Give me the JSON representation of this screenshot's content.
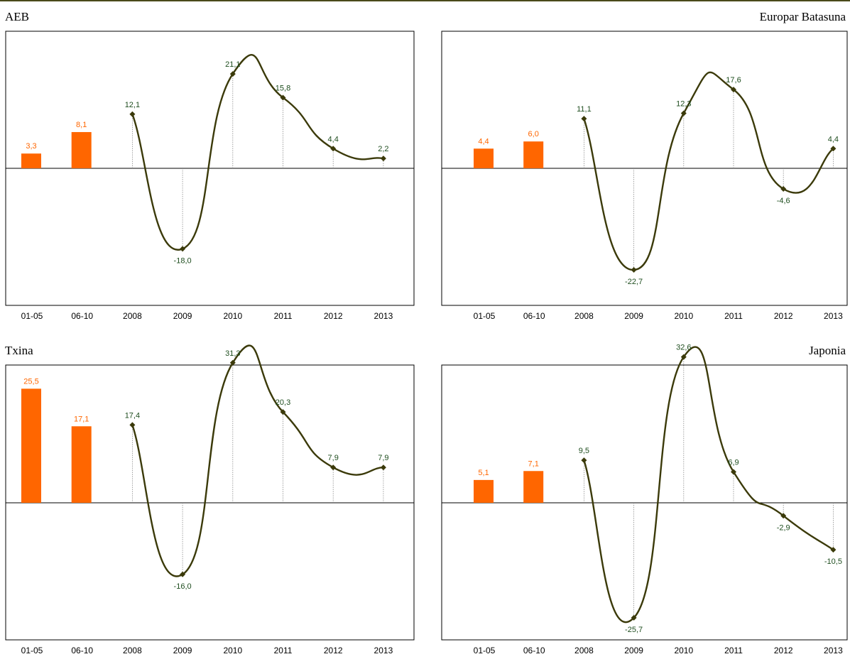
{
  "colors": {
    "bar": "#ff6600",
    "line": "#3b3a0a",
    "line_label": "#1e4d1e",
    "bar_label": "#ff6600",
    "frame": "#000000",
    "drop": "#8c8c8c"
  },
  "categories": [
    "01-05",
    "06-10",
    "2008",
    "2009",
    "2010",
    "2011",
    "2012",
    "2013"
  ],
  "chart_data": [
    {
      "type": "bar+line",
      "title": "AEB",
      "categories": [
        "01-05",
        "06-10",
        "2008",
        "2009",
        "2010",
        "2011",
        "2012",
        "2013"
      ],
      "bars": {
        "categories": [
          "01-05",
          "06-10"
        ],
        "values": [
          3.3,
          8.1
        ],
        "labels": [
          "3,3",
          "8,1"
        ]
      },
      "line": {
        "categories": [
          "2008",
          "2009",
          "2010",
          "2011",
          "2012",
          "2013"
        ],
        "values": [
          12.1,
          -18.0,
          21.1,
          15.8,
          4.4,
          2.2
        ],
        "labels": [
          "12,1",
          "-18,0",
          "21,1",
          "15,8",
          "4,4",
          "2,2"
        ]
      },
      "ylim": [
        -40,
        40
      ]
    },
    {
      "type": "bar+line",
      "title": "Europar Batasuna",
      "categories": [
        "01-05",
        "06-10",
        "2008",
        "2009",
        "2010",
        "2011",
        "2012",
        "2013"
      ],
      "bars": {
        "categories": [
          "01-05",
          "06-10"
        ],
        "values": [
          4.4,
          6.0
        ],
        "labels": [
          "4,4",
          "6,0"
        ]
      },
      "line": {
        "categories": [
          "2008",
          "2009",
          "2010",
          "2011",
          "2012",
          "2013"
        ],
        "values": [
          11.1,
          -22.7,
          12.3,
          17.6,
          -4.6,
          4.4
        ],
        "labels": [
          "11,1",
          "-22,7",
          "12,3",
          "17,6",
          "-4,6",
          "4,4"
        ]
      },
      "ylim": [
        -40,
        40
      ]
    },
    {
      "type": "bar+line",
      "title": "Txina",
      "categories": [
        "01-05",
        "06-10",
        "2008",
        "2009",
        "2010",
        "2011",
        "2012",
        "2013"
      ],
      "bars": {
        "categories": [
          "01-05",
          "06-10"
        ],
        "values": [
          25.5,
          17.1
        ],
        "labels": [
          "25,5",
          "17,1"
        ]
      },
      "line": {
        "categories": [
          "2008",
          "2009",
          "2010",
          "2011",
          "2012",
          "2013"
        ],
        "values": [
          17.4,
          -16.0,
          31.3,
          20.3,
          7.9,
          7.9
        ],
        "labels": [
          "17,4",
          "-16,0",
          "31,3",
          "20,3",
          "7,9",
          "7,9"
        ]
      },
      "ylim": [
        -40,
        40
      ]
    },
    {
      "type": "bar+line",
      "title": "Japonia",
      "categories": [
        "01-05",
        "06-10",
        "2008",
        "2009",
        "2010",
        "2011",
        "2012",
        "2013"
      ],
      "bars": {
        "categories": [
          "01-05",
          "06-10"
        ],
        "values": [
          5.1,
          7.1
        ],
        "labels": [
          "5,1",
          "7,1"
        ]
      },
      "line": {
        "categories": [
          "2008",
          "2009",
          "2010",
          "2011",
          "2012",
          "2013"
        ],
        "values": [
          9.5,
          -25.7,
          32.6,
          6.9,
          -2.9,
          -10.5
        ],
        "labels": [
          "9,5",
          "-25,7",
          "32,6",
          "6,9",
          "-2,9",
          "-10,5"
        ]
      },
      "ylim": [
        -40,
        40
      ]
    }
  ]
}
